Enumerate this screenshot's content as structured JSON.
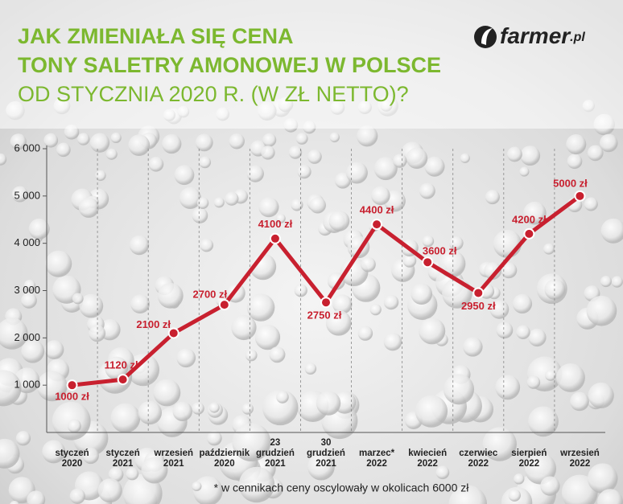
{
  "chart_data": {
    "type": "line",
    "title": [
      "JAK ZMIENIAŁA SIĘ CENA",
      "TONY SALETRY AMONOWEJ W POLSCE",
      "OD STYCZNIA 2020 R. (W ZŁ NETTO)?"
    ],
    "logo": {
      "name": "farmer",
      "suffix": ".pl"
    },
    "categories": [
      [
        "styczeń",
        "2020"
      ],
      [
        "styczeń",
        "2021"
      ],
      [
        "wrzesień",
        "2021"
      ],
      [
        "październik",
        "2020"
      ],
      [
        "23",
        "grudzień",
        "2021"
      ],
      [
        "30",
        "grudzień",
        "2021"
      ],
      [
        "marzec*",
        "2022"
      ],
      [
        "kwiecień",
        "2022"
      ],
      [
        "czerwiec",
        "2022"
      ],
      [
        "sierpień",
        "2022"
      ],
      [
        "wrzesień",
        "2022"
      ]
    ],
    "values": [
      1000,
      1120,
      2100,
      2700,
      4100,
      2750,
      4400,
      3600,
      2950,
      4200,
      5000
    ],
    "value_labels": [
      "1000 zł",
      "1120 zł",
      "2100 zł",
      "2700 zł",
      "4100 zł",
      "2750 zł",
      "4400 zł",
      "3600 zł",
      "2950 zł",
      "4200 zł",
      "5000 zł"
    ],
    "color": "#c8202f",
    "ylim": [
      0,
      6000
    ],
    "yticks": [
      {
        "value": 1000,
        "label": "1 000"
      },
      {
        "value": 2000,
        "label": "2 000"
      },
      {
        "value": 3000,
        "label": "3 000"
      },
      {
        "value": 4000,
        "label": "4 000"
      },
      {
        "value": 5000,
        "label": "5 000"
      },
      {
        "value": 6000,
        "label": "6 000"
      }
    ],
    "grid": true,
    "footnote": "* w cennikach ceny oscylowały w okolicach 6000 zł"
  }
}
